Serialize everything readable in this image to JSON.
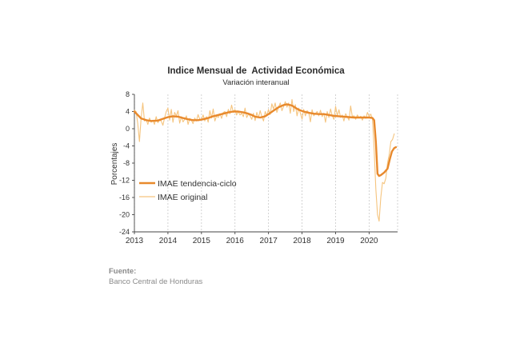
{
  "chart_data": {
    "type": "line",
    "title": "Indice Mensual de  Actividad Económica",
    "subtitle": "Variación interanual",
    "ylabel": "Porcentajes",
    "xlabel": "",
    "ylim": [
      -24,
      8
    ],
    "yticks": [
      8,
      4,
      0,
      -4,
      -8,
      -12,
      -16,
      -20,
      -24
    ],
    "xlim": [
      2013,
      2020.85
    ],
    "xticks": [
      "2013",
      "2014",
      "2015",
      "2016",
      "2017",
      "2018",
      "2019",
      "2020"
    ],
    "grid": "vertical-dashed",
    "legend_position": "bottom-left",
    "series": [
      {
        "name": "IMAE tendencia-ciclo",
        "color": "#E8892C",
        "points": [
          [
            2013.0,
            4.0
          ],
          [
            2013.1,
            3.2
          ],
          [
            2013.2,
            2.4
          ],
          [
            2013.35,
            2.0
          ],
          [
            2013.5,
            1.8
          ],
          [
            2013.7,
            1.9
          ],
          [
            2013.85,
            2.3
          ],
          [
            2014.0,
            2.7
          ],
          [
            2014.15,
            2.9
          ],
          [
            2014.3,
            2.8
          ],
          [
            2014.45,
            2.5
          ],
          [
            2014.6,
            2.2
          ],
          [
            2014.75,
            2.0
          ],
          [
            2014.9,
            2.0
          ],
          [
            2015.05,
            2.2
          ],
          [
            2015.2,
            2.5
          ],
          [
            2015.35,
            2.9
          ],
          [
            2015.5,
            3.2
          ],
          [
            2015.65,
            3.5
          ],
          [
            2015.8,
            3.8
          ],
          [
            2015.95,
            4.0
          ],
          [
            2016.1,
            4.0
          ],
          [
            2016.25,
            3.8
          ],
          [
            2016.4,
            3.5
          ],
          [
            2016.5,
            3.2
          ],
          [
            2016.6,
            2.8
          ],
          [
            2016.75,
            2.6
          ],
          [
            2016.9,
            2.9
          ],
          [
            2017.0,
            3.4
          ],
          [
            2017.15,
            4.2
          ],
          [
            2017.3,
            5.0
          ],
          [
            2017.45,
            5.5
          ],
          [
            2017.55,
            5.7
          ],
          [
            2017.7,
            5.4
          ],
          [
            2017.8,
            4.9
          ],
          [
            2017.9,
            4.4
          ],
          [
            2018.05,
            4.0
          ],
          [
            2018.2,
            3.7
          ],
          [
            2018.35,
            3.5
          ],
          [
            2018.5,
            3.4
          ],
          [
            2018.65,
            3.4
          ],
          [
            2018.8,
            3.2
          ],
          [
            2018.95,
            3.0
          ],
          [
            2019.1,
            2.9
          ],
          [
            2019.25,
            2.8
          ],
          [
            2019.4,
            2.7
          ],
          [
            2019.55,
            2.6
          ],
          [
            2019.7,
            2.6
          ],
          [
            2019.85,
            2.6
          ],
          [
            2020.0,
            2.6
          ],
          [
            2020.1,
            2.5
          ],
          [
            2020.15,
            2.0
          ],
          [
            2020.2,
            -3.0
          ],
          [
            2020.25,
            -10.5
          ],
          [
            2020.3,
            -11.0
          ],
          [
            2020.35,
            -10.8
          ],
          [
            2020.45,
            -10.2
          ],
          [
            2020.55,
            -9.3
          ],
          [
            2020.62,
            -7.0
          ],
          [
            2020.68,
            -5.3
          ],
          [
            2020.75,
            -4.5
          ],
          [
            2020.8,
            -4.3
          ]
        ]
      },
      {
        "name": "IMAE original",
        "color": "#F5C47E",
        "points": [
          [
            2013.0,
            4.3
          ],
          [
            2013.05,
            4.0
          ],
          [
            2013.1,
            1.2
          ],
          [
            2013.15,
            -3.0
          ],
          [
            2013.2,
            2.5
          ],
          [
            2013.25,
            6.0
          ],
          [
            2013.3,
            1.8
          ],
          [
            2013.35,
            2.2
          ],
          [
            2013.4,
            1.0
          ],
          [
            2013.45,
            2.5
          ],
          [
            2013.5,
            1.5
          ],
          [
            2013.55,
            2.0
          ],
          [
            2013.6,
            1.0
          ],
          [
            2013.65,
            2.8
          ],
          [
            2013.7,
            1.4
          ],
          [
            2013.75,
            2.0
          ],
          [
            2013.8,
            1.8
          ],
          [
            2013.85,
            0.8
          ],
          [
            2013.9,
            2.5
          ],
          [
            2013.95,
            4.0
          ],
          [
            2014.0,
            4.8
          ],
          [
            2014.05,
            2.0
          ],
          [
            2014.1,
            4.5
          ],
          [
            2014.15,
            1.5
          ],
          [
            2014.2,
            3.8
          ],
          [
            2014.25,
            3.0
          ],
          [
            2014.3,
            4.2
          ],
          [
            2014.35,
            1.3
          ],
          [
            2014.4,
            2.8
          ],
          [
            2014.45,
            1.6
          ],
          [
            2014.5,
            2.2
          ],
          [
            2014.55,
            3.0
          ],
          [
            2014.6,
            1.0
          ],
          [
            2014.65,
            2.4
          ],
          [
            2014.7,
            2.0
          ],
          [
            2014.75,
            1.2
          ],
          [
            2014.8,
            2.5
          ],
          [
            2014.85,
            1.8
          ],
          [
            2014.9,
            3.3
          ],
          [
            2014.95,
            2.2
          ],
          [
            2015.0,
            2.0
          ],
          [
            2015.05,
            3.2
          ],
          [
            2015.1,
            1.8
          ],
          [
            2015.15,
            2.8
          ],
          [
            2015.2,
            1.5
          ],
          [
            2015.25,
            4.2
          ],
          [
            2015.3,
            2.5
          ],
          [
            2015.35,
            4.6
          ],
          [
            2015.4,
            1.8
          ],
          [
            2015.45,
            3.0
          ],
          [
            2015.5,
            2.6
          ],
          [
            2015.55,
            3.5
          ],
          [
            2015.6,
            2.4
          ],
          [
            2015.65,
            3.8
          ],
          [
            2015.7,
            4.0
          ],
          [
            2015.75,
            2.8
          ],
          [
            2015.8,
            4.5
          ],
          [
            2015.85,
            3.5
          ],
          [
            2015.9,
            5.5
          ],
          [
            2015.95,
            3.8
          ],
          [
            2016.0,
            4.5
          ],
          [
            2016.05,
            3.2
          ],
          [
            2016.1,
            4.0
          ],
          [
            2016.15,
            3.2
          ],
          [
            2016.2,
            3.6
          ],
          [
            2016.25,
            2.8
          ],
          [
            2016.3,
            4.8
          ],
          [
            2016.35,
            2.6
          ],
          [
            2016.4,
            3.4
          ],
          [
            2016.45,
            3.0
          ],
          [
            2016.5,
            2.2
          ],
          [
            2016.55,
            3.6
          ],
          [
            2016.6,
            1.9
          ],
          [
            2016.65,
            3.8
          ],
          [
            2016.7,
            2.5
          ],
          [
            2016.75,
            4.2
          ],
          [
            2016.8,
            2.8
          ],
          [
            2016.85,
            1.8
          ],
          [
            2016.9,
            4.0
          ],
          [
            2016.95,
            3.0
          ],
          [
            2017.0,
            4.5
          ],
          [
            2017.05,
            3.3
          ],
          [
            2017.1,
            5.8
          ],
          [
            2017.15,
            4.6
          ],
          [
            2017.2,
            6.0
          ],
          [
            2017.25,
            3.8
          ],
          [
            2017.3,
            5.0
          ],
          [
            2017.35,
            6.0
          ],
          [
            2017.4,
            4.2
          ],
          [
            2017.45,
            5.2
          ],
          [
            2017.5,
            6.3
          ],
          [
            2017.55,
            5.0
          ],
          [
            2017.6,
            6.0
          ],
          [
            2017.65,
            3.6
          ],
          [
            2017.7,
            6.8
          ],
          [
            2017.75,
            4.0
          ],
          [
            2017.8,
            5.6
          ],
          [
            2017.85,
            3.0
          ],
          [
            2017.9,
            4.8
          ],
          [
            2017.95,
            3.6
          ],
          [
            2018.0,
            2.2
          ],
          [
            2018.05,
            4.5
          ],
          [
            2018.1,
            3.0
          ],
          [
            2018.15,
            4.2
          ],
          [
            2018.2,
            3.8
          ],
          [
            2018.25,
            1.6
          ],
          [
            2018.3,
            4.4
          ],
          [
            2018.35,
            3.0
          ],
          [
            2018.4,
            3.5
          ],
          [
            2018.45,
            4.0
          ],
          [
            2018.5,
            3.0
          ],
          [
            2018.55,
            4.3
          ],
          [
            2018.6,
            2.8
          ],
          [
            2018.65,
            3.6
          ],
          [
            2018.7,
            1.5
          ],
          [
            2018.75,
            4.0
          ],
          [
            2018.8,
            2.6
          ],
          [
            2018.85,
            4.6
          ],
          [
            2018.9,
            3.0
          ],
          [
            2018.95,
            2.2
          ],
          [
            2019.0,
            5.2
          ],
          [
            2019.05,
            3.0
          ],
          [
            2019.1,
            4.4
          ],
          [
            2019.15,
            2.6
          ],
          [
            2019.2,
            3.2
          ],
          [
            2019.25,
            1.8
          ],
          [
            2019.3,
            3.5
          ],
          [
            2019.35,
            2.8
          ],
          [
            2019.4,
            2.0
          ],
          [
            2019.45,
            5.3
          ],
          [
            2019.5,
            2.8
          ],
          [
            2019.55,
            3.0
          ],
          [
            2019.6,
            2.2
          ],
          [
            2019.65,
            3.2
          ],
          [
            2019.7,
            2.5
          ],
          [
            2019.75,
            2.9
          ],
          [
            2019.8,
            2.0
          ],
          [
            2019.85,
            3.0
          ],
          [
            2019.9,
            2.4
          ],
          [
            2019.95,
            3.8
          ],
          [
            2020.0,
            2.8
          ],
          [
            2020.05,
            3.4
          ],
          [
            2020.1,
            2.2
          ],
          [
            2020.15,
            -5.0
          ],
          [
            2020.2,
            -14.0
          ],
          [
            2020.25,
            -20.0
          ],
          [
            2020.3,
            -21.5
          ],
          [
            2020.35,
            -16.0
          ],
          [
            2020.4,
            -12.5
          ],
          [
            2020.45,
            -12.8
          ],
          [
            2020.5,
            -11.5
          ],
          [
            2020.55,
            -8.0
          ],
          [
            2020.6,
            -6.0
          ],
          [
            2020.65,
            -3.0
          ],
          [
            2020.7,
            -2.5
          ],
          [
            2020.75,
            -1.2
          ]
        ]
      }
    ]
  },
  "source": {
    "label": "Fuente:",
    "text": "Banco Central de Honduras"
  }
}
